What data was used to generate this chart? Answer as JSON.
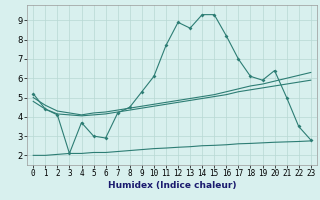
{
  "xlabel": "Humidex (Indice chaleur)",
  "x_values": [
    0,
    1,
    2,
    3,
    4,
    5,
    6,
    7,
    8,
    9,
    10,
    11,
    12,
    13,
    14,
    15,
    16,
    17,
    18,
    19,
    20,
    21,
    22,
    23
  ],
  "line1_y": [
    5.2,
    4.4,
    4.1,
    2.1,
    3.7,
    3.0,
    2.9,
    4.2,
    4.5,
    5.3,
    6.1,
    7.7,
    8.9,
    8.6,
    9.3,
    9.3,
    8.2,
    7.0,
    6.1,
    5.9,
    6.4,
    5.0,
    3.5,
    2.8
  ],
  "line2_y": [
    4.8,
    4.4,
    4.15,
    4.1,
    4.05,
    4.1,
    4.15,
    4.25,
    4.35,
    4.45,
    4.55,
    4.65,
    4.75,
    4.85,
    4.95,
    5.05,
    5.15,
    5.3,
    5.4,
    5.5,
    5.6,
    5.7,
    5.8,
    5.9
  ],
  "line3_y": [
    5.0,
    4.6,
    4.3,
    4.2,
    4.1,
    4.2,
    4.25,
    4.35,
    4.45,
    4.55,
    4.65,
    4.75,
    4.85,
    4.95,
    5.05,
    5.15,
    5.3,
    5.45,
    5.6,
    5.7,
    5.85,
    6.0,
    6.15,
    6.3
  ],
  "line4_y": [
    2.0,
    2.0,
    2.05,
    2.1,
    2.1,
    2.15,
    2.15,
    2.2,
    2.25,
    2.3,
    2.35,
    2.38,
    2.42,
    2.45,
    2.5,
    2.52,
    2.55,
    2.6,
    2.62,
    2.65,
    2.68,
    2.7,
    2.72,
    2.75
  ],
  "line_color": "#2d7d74",
  "bg_color": "#d8f0ee",
  "grid_color": "#b8d8d4",
  "ylim": [
    1.5,
    9.8
  ],
  "yticks": [
    2,
    3,
    4,
    5,
    6,
    7,
    8,
    9
  ],
  "tick_fontsize": 5.5,
  "xlabel_fontsize": 6.5
}
